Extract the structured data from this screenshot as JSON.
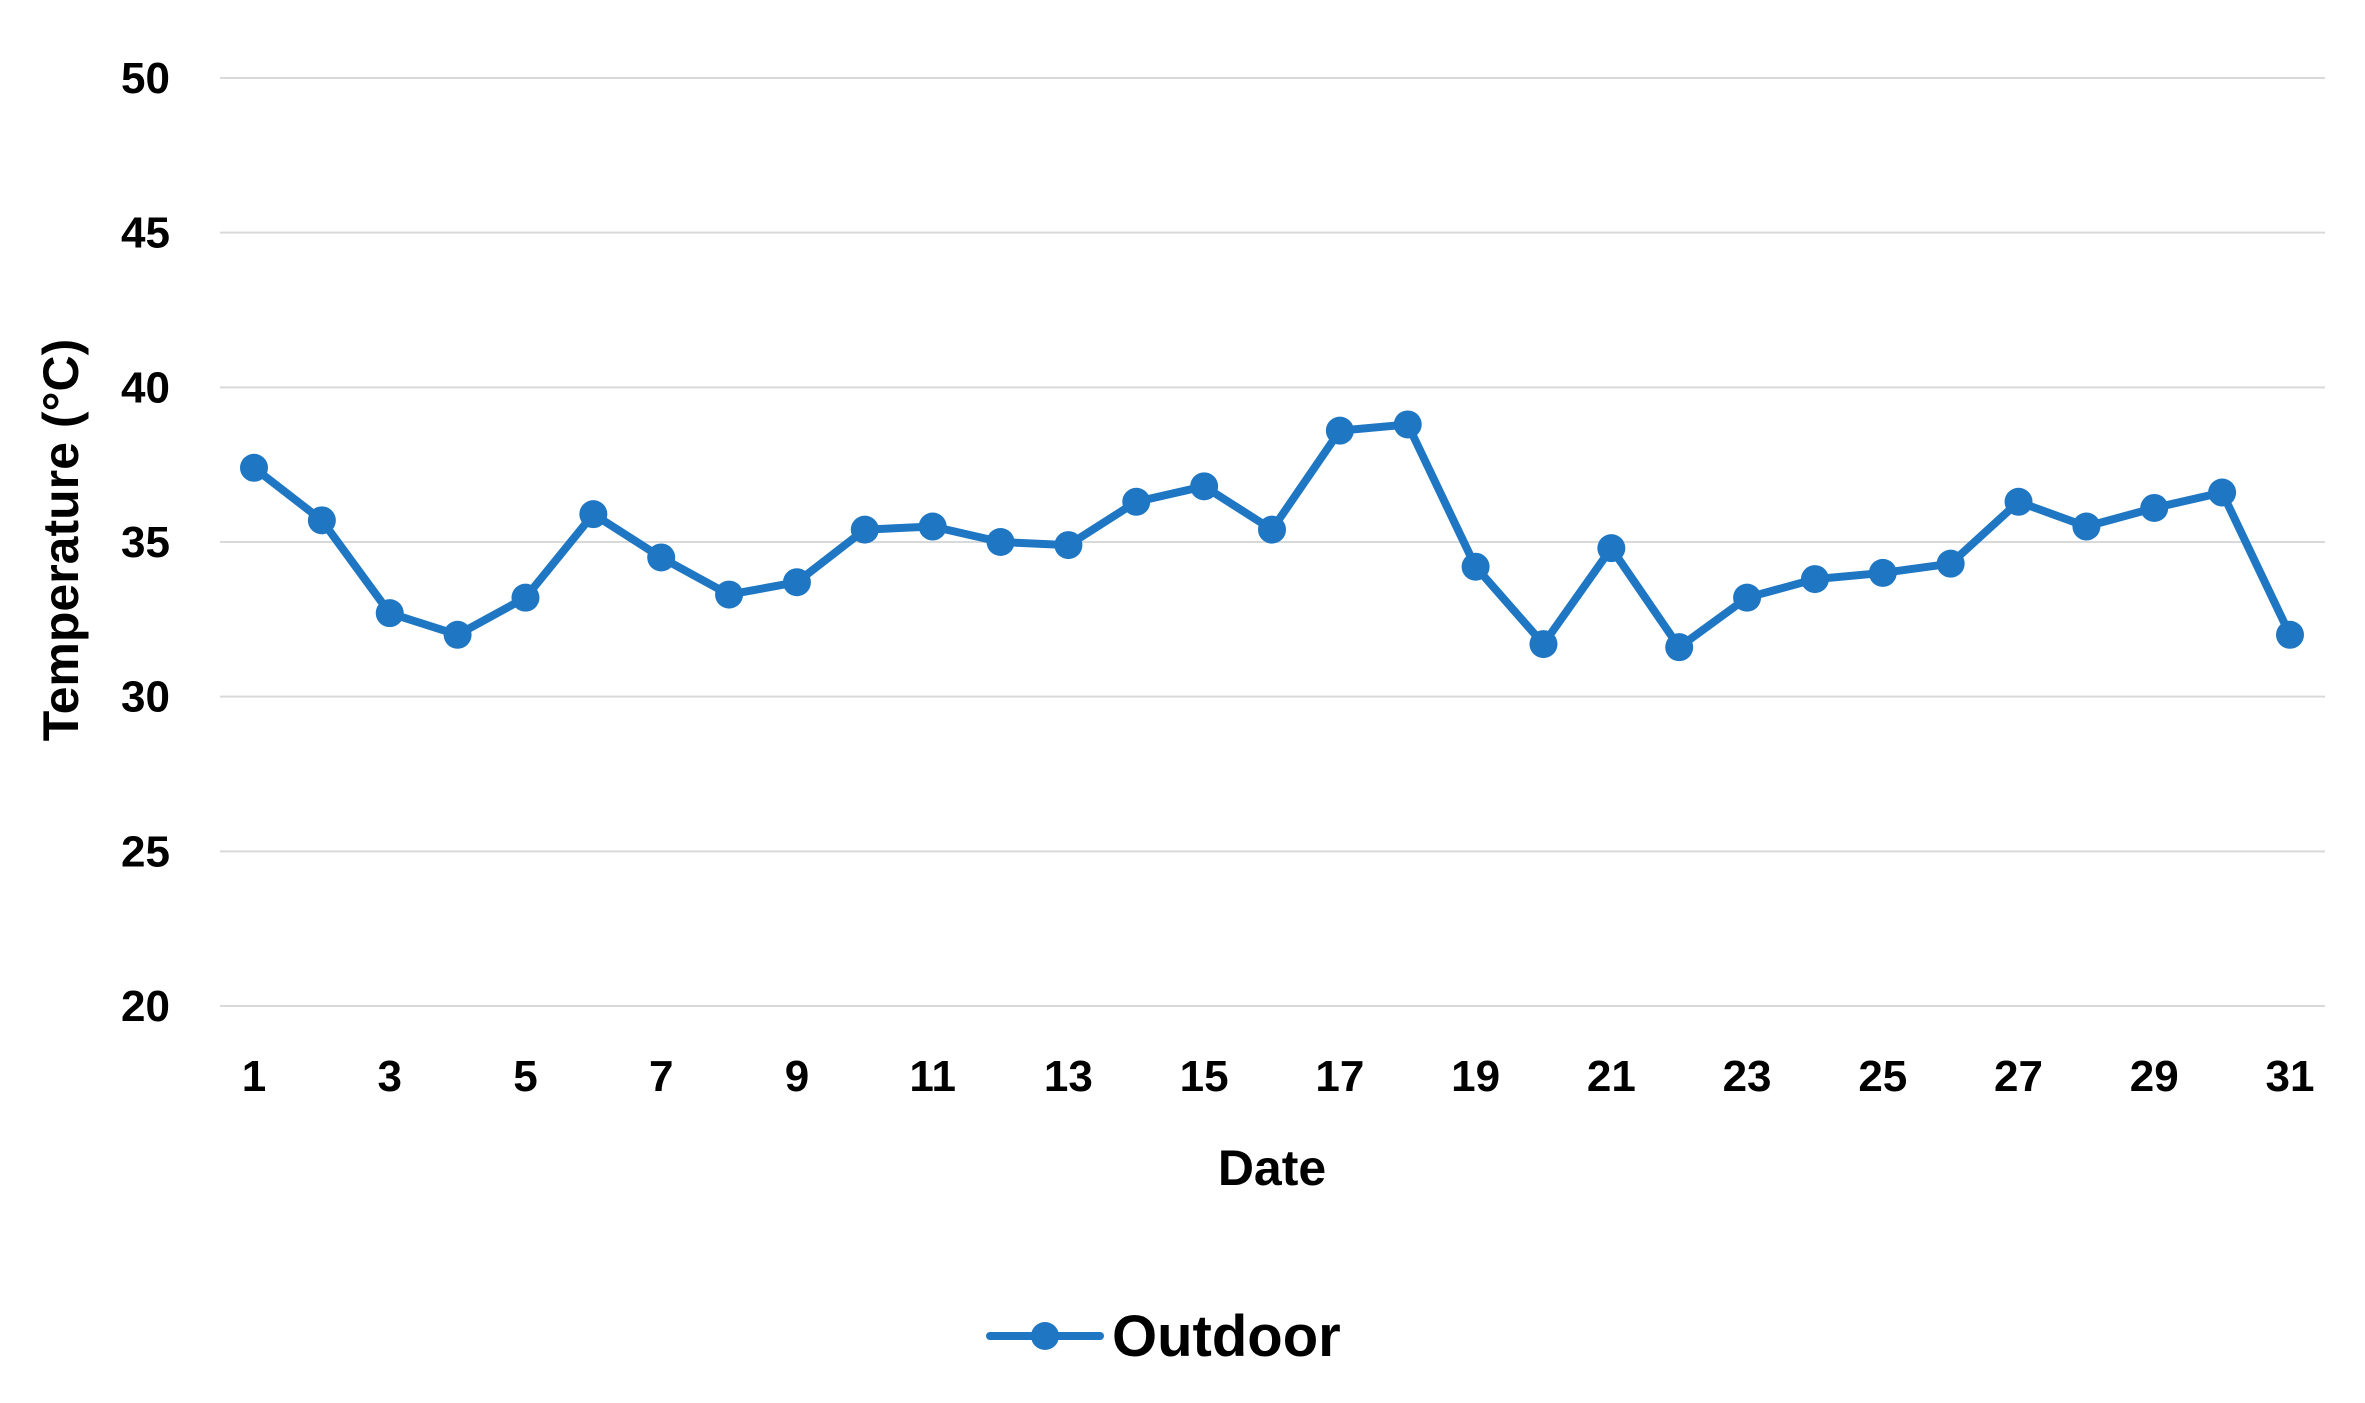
{
  "chart_data": {
    "type": "line",
    "title": "",
    "xlabel": "Date",
    "ylabel": "Temperature (°C)",
    "ylim": [
      20,
      50
    ],
    "y_ticks": [
      20,
      25,
      30,
      35,
      40,
      45,
      50
    ],
    "xlim": [
      1,
      31
    ],
    "x_ticks": [
      1,
      3,
      5,
      7,
      9,
      11,
      13,
      15,
      17,
      19,
      21,
      23,
      25,
      27,
      29,
      31
    ],
    "grid": "horizontal",
    "legend_position": "bottom",
    "x": [
      1,
      2,
      3,
      4,
      5,
      6,
      7,
      8,
      9,
      10,
      11,
      12,
      13,
      14,
      15,
      16,
      17,
      18,
      19,
      20,
      21,
      22,
      23,
      24,
      25,
      26,
      27,
      28,
      29,
      30,
      31
    ],
    "series": [
      {
        "name": "Outdoor",
        "color": "#1f77c4",
        "values": [
          37.4,
          35.7,
          32.7,
          32.0,
          33.2,
          35.9,
          34.5,
          33.3,
          33.7,
          35.4,
          35.5,
          35.0,
          34.9,
          36.3,
          36.8,
          35.4,
          38.6,
          38.8,
          34.2,
          31.7,
          34.8,
          31.6,
          33.2,
          33.8,
          34.0,
          34.3,
          36.3,
          35.5,
          36.1,
          36.6,
          32.0
        ]
      }
    ]
  }
}
